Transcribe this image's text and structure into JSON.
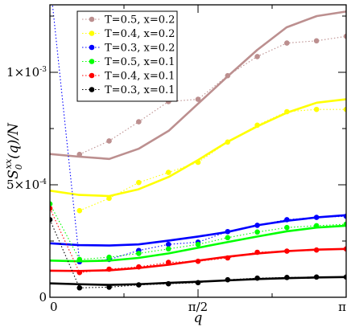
{
  "chart_data": {
    "type": "line",
    "title": "",
    "xlabel": "q",
    "ylabel": "S_0^{xx}(q)/N",
    "xlim": [
      0,
      3.14159
    ],
    "ylim": [
      0,
      0.0013
    ],
    "grid": false,
    "legend_position": "top-left",
    "x_ticks": [
      {
        "value": 0,
        "label": "0"
      },
      {
        "value": 1.5708,
        "label": "π/2"
      },
      {
        "value": 3.14159,
        "label": "π"
      }
    ],
    "y_ticks": [
      {
        "value": 0,
        "label": "0"
      },
      {
        "value": 0.0005,
        "label_mantissa": "5",
        "label_times": "×10",
        "label_exp": "-4"
      },
      {
        "value": 0.001,
        "label_mantissa": "1",
        "label_times": "×10",
        "label_exp": "-3"
      }
    ],
    "curve_x": [
      0,
      0.31,
      0.63,
      0.94,
      1.26,
      1.57,
      1.88,
      2.2,
      2.51,
      2.83,
      3.14
    ],
    "point_x": [
      0,
      0.314,
      0.628,
      0.942,
      1.257,
      1.571,
      1.885,
      2.199,
      2.513,
      2.827,
      3.142
    ],
    "series": [
      {
        "name": "T=0.5, x=0.2",
        "color": "#bc8f8f",
        "curve": [
          0.000637,
          0.000625,
          0.000615,
          0.00066,
          0.00074,
          0.00086,
          0.00098,
          0.0011,
          0.0012,
          0.00125,
          0.00127
        ],
        "points": [
          null,
          0.000635,
          0.000695,
          0.00078,
          0.00087,
          0.00088,
          0.000985,
          0.00107,
          0.00113,
          0.00114,
          0.00116
        ]
      },
      {
        "name": "T=0.4, x=0.2",
        "color": "#ffff00",
        "curve": [
          0.000474,
          0.000455,
          0.00045,
          0.00048,
          0.000535,
          0.00061,
          0.00069,
          0.00076,
          0.00082,
          0.000865,
          0.00088
        ],
        "points": [
          null,
          0.000385,
          0.00044,
          0.00051,
          0.000555,
          0.0006,
          0.00069,
          0.000765,
          0.000825,
          0.000835,
          0.000835
        ]
      },
      {
        "name": "T=0.3, x=0.2",
        "color": "#0000ff",
        "curve": [
          0.00024,
          0.000232,
          0.00023,
          0.000235,
          0.000252,
          0.00027,
          0.00029,
          0.00032,
          0.00034,
          0.000355,
          0.000365
        ],
        "points": [
          0.00141,
          0.000158,
          0.000168,
          0.000208,
          0.000235,
          0.000245,
          0.000292,
          0.00032,
          0.000345,
          0.000355,
          0.00036
        ]
      },
      {
        "name": "T=0.5, x=0.1",
        "color": "#00ff00",
        "curve": [
          0.000163,
          0.00016,
          0.000163,
          0.000175,
          0.000195,
          0.00022,
          0.000245,
          0.00027,
          0.000293,
          0.00031,
          0.000318
        ],
        "points": [
          0.000415,
          0.000168,
          0.000178,
          0.000195,
          0.000215,
          0.000235,
          0.000265,
          0.00029,
          0.00031,
          0.000318,
          0.000325
        ]
      },
      {
        "name": "T=0.4, x=0.1",
        "color": "#ff0000",
        "curve": [
          0.000118,
          0.000117,
          0.00012,
          0.00013,
          0.000145,
          0.000163,
          0.00018,
          0.000195,
          0.000205,
          0.000212,
          0.000215
        ],
        "points": [
          0.000395,
          0.00011,
          0.000125,
          0.000135,
          0.000155,
          0.00016,
          0.000175,
          0.0002,
          0.000205,
          0.00021,
          0.000215
        ]
      },
      {
        "name": "T=0.3, x=0.1",
        "color": "#000000",
        "curve": [
          6.2e-05,
          5.8e-05,
          5.5e-05,
          5.8e-05,
          6.4e-05,
          6.9e-05,
          7.5e-05,
          8.1e-05,
          8.5e-05,
          8.8e-05,
          9e-05
        ],
        "points": [
          0.000345,
          4.2e-05,
          4.5e-05,
          5.5e-05,
          6e-05,
          6.5e-05,
          7.8e-05,
          8.5e-05,
          8.8e-05,
          9e-05,
          9e-05
        ]
      }
    ]
  }
}
